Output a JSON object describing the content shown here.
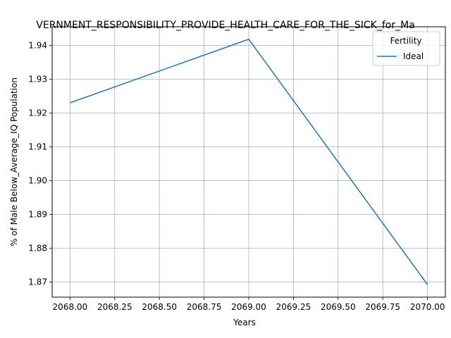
{
  "chart_data": {
    "type": "line",
    "title": "VERNMENT_RESPONSIBILITY_PROVIDE_HEALTH_CARE_FOR_THE_SICK_for_Ma",
    "xlabel": "Years",
    "ylabel": "% of Male Below_Average_IQ Population",
    "x": [
      2068,
      2069,
      2070
    ],
    "series": [
      {
        "name": "Ideal",
        "values": [
          1.923,
          1.9418,
          1.8692
        ],
        "color": "#1f77b4"
      }
    ],
    "xlim": [
      2067.9,
      2070.1
    ],
    "ylim": [
      1.8655,
      1.9455
    ],
    "xticks": [
      2068.0,
      2068.25,
      2068.5,
      2068.75,
      2069.0,
      2069.25,
      2069.5,
      2069.75,
      2070.0
    ],
    "xtick_labels": [
      "2068.00",
      "2068.25",
      "2068.50",
      "2068.75",
      "2069.00",
      "2069.25",
      "2069.50",
      "2069.75",
      "2070.00"
    ],
    "yticks": [
      1.87,
      1.88,
      1.89,
      1.9,
      1.91,
      1.92,
      1.93,
      1.94
    ],
    "ytick_labels": [
      "1.87",
      "1.88",
      "1.89",
      "1.90",
      "1.91",
      "1.92",
      "1.93",
      "1.94"
    ],
    "grid": true,
    "legend": {
      "title": "Fertility",
      "position": "top-right"
    }
  }
}
